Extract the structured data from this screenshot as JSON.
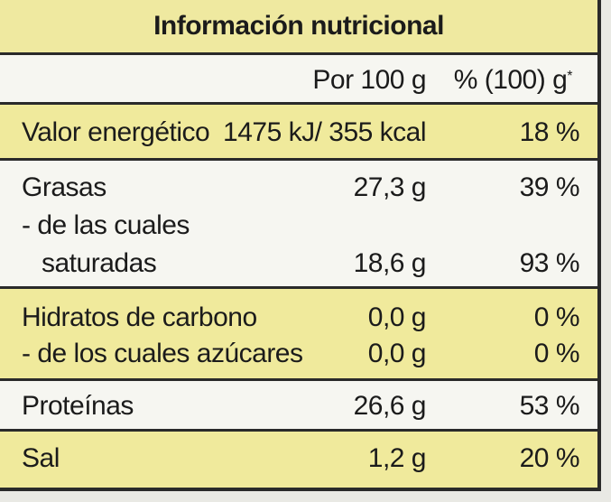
{
  "title": "Información nutricional",
  "header": {
    "per100": "Por 100 g",
    "percent": "% (100) g",
    "asterisk": "*"
  },
  "rows": [
    {
      "name": "Valor energético",
      "value": "1475 kJ/ 355 kcal",
      "percent": "18 %"
    },
    {
      "name": "Grasas",
      "value": "27,3 g",
      "percent": "39 %"
    },
    {
      "name": "- de las cuales",
      "value": "",
      "percent": ""
    },
    {
      "name": "saturadas",
      "value": "18,6 g",
      "percent": "93 %"
    },
    {
      "name": "Hidratos de carbono",
      "value": "0,0 g",
      "percent": "0 %"
    },
    {
      "name": "- de los cuales azúcares",
      "value": "0,0 g",
      "percent": "0 %"
    },
    {
      "name": "Proteínas",
      "value": "26,6 g",
      "percent": "53 %"
    },
    {
      "name": "Sal",
      "value": "1,2 g",
      "percent": "20 %"
    }
  ],
  "colors": {
    "band_yellow": "#f0ea9c",
    "band_white": "#f6f6f1",
    "rule": "#2a2a2a"
  }
}
